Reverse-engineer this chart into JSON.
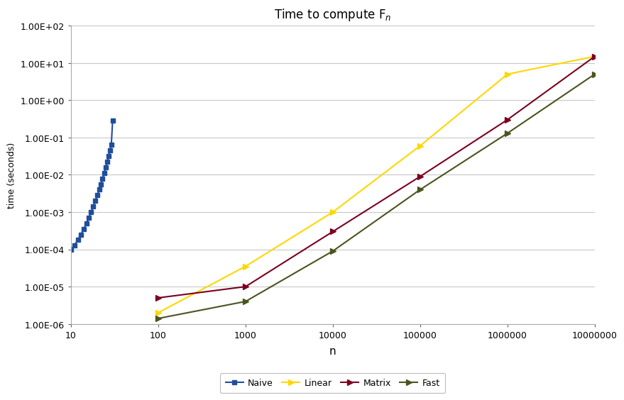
{
  "title": "Time to compute F$_n$",
  "xlabel": "n",
  "ylabel": "time (seconds)",
  "background_color": "#ffffff",
  "plot_bg_color": "#ffffff",
  "grid_color": "#c8c8c8",
  "naive": {
    "x": [
      10,
      11,
      12,
      13,
      14,
      15,
      16,
      17,
      18,
      19,
      20,
      21,
      22,
      23,
      24,
      25,
      26,
      27,
      28,
      29,
      30
    ],
    "y": [
      0.0001,
      0.00013,
      0.00018,
      0.00025,
      0.00035,
      0.0005,
      0.0007,
      0.001,
      0.0014,
      0.002,
      0.0028,
      0.004,
      0.0055,
      0.008,
      0.011,
      0.016,
      0.022,
      0.032,
      0.045,
      0.065,
      0.28
    ],
    "color": "#1F4E9B",
    "marker": "s",
    "markersize": 5,
    "linewidth": 1.5,
    "label": "Naive"
  },
  "linear": {
    "x": [
      100,
      1000,
      10000,
      100000,
      1000000,
      10000000
    ],
    "y": [
      2e-06,
      3.5e-05,
      0.001,
      0.06,
      5.0,
      15.0
    ],
    "color": "#FFD700",
    "marker": ">",
    "markersize": 6,
    "linewidth": 1.5,
    "label": "Linear"
  },
  "matrix": {
    "x": [
      100,
      1000,
      10000,
      100000,
      1000000,
      10000000
    ],
    "y": [
      5e-06,
      1e-05,
      0.0003,
      0.009,
      0.3,
      15.0
    ],
    "color": "#7B0021",
    "marker": ">",
    "markersize": 6,
    "linewidth": 1.5,
    "label": "Matrix"
  },
  "fast": {
    "x": [
      100,
      1000,
      10000,
      100000,
      1000000,
      10000000
    ],
    "y": [
      1.4e-06,
      4e-06,
      9e-05,
      0.004,
      0.13,
      5.0
    ],
    "color": "#4B5320",
    "marker": ">",
    "markersize": 6,
    "linewidth": 1.5,
    "label": "Fast"
  },
  "xticks": [
    10,
    100,
    1000,
    10000,
    100000,
    1000000,
    10000000
  ],
  "xticklabels": [
    "10",
    "100",
    "1000",
    "10000",
    "100000",
    "1000000",
    "10000000"
  ],
  "yticks": [
    1e-06,
    1e-05,
    0.0001,
    0.001,
    0.01,
    0.1,
    1.0,
    10.0,
    100.0
  ],
  "yticklabels": [
    "1.00E-06",
    "1.00E-05",
    "1.00E-04",
    "1.00E-03",
    "1.00E-02",
    "1.00E-01",
    "1.00E+00",
    "1.00E+01",
    "1.00E+02"
  ]
}
